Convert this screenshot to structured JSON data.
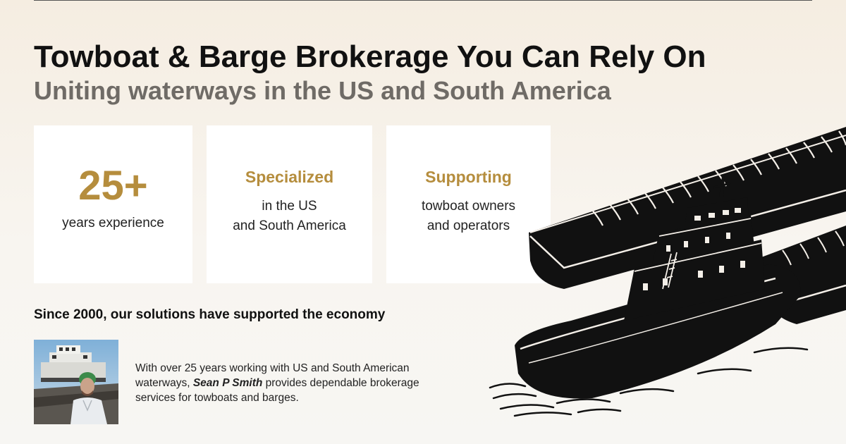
{
  "hero": {
    "headline": "Towboat & Barge Brokerage You Can Rely On",
    "subheadline": "Uniting waterways in the US and South America"
  },
  "stats": [
    {
      "title": "25+",
      "line1": "years experience",
      "line2": ""
    },
    {
      "title": "Specialized",
      "line1": "in the US",
      "line2": "and South America"
    },
    {
      "title": "Supporting",
      "line1": "towboat owners",
      "line2": "and operators"
    }
  ],
  "since": "Since 2000, our solutions have supported the economy",
  "bio": {
    "before": "With over 25 years working with US and South American waterways, ",
    "name": "Sean P Smith",
    "after": " provides dependable brokerage services for towboats and barges."
  },
  "colors": {
    "accent": "#b58d3d",
    "subheadline": "#6f6b66",
    "text": "#111111"
  },
  "icons": {
    "illustration": "towboat-pushing-barges-illustration",
    "photo": "person-portrait-photo"
  }
}
